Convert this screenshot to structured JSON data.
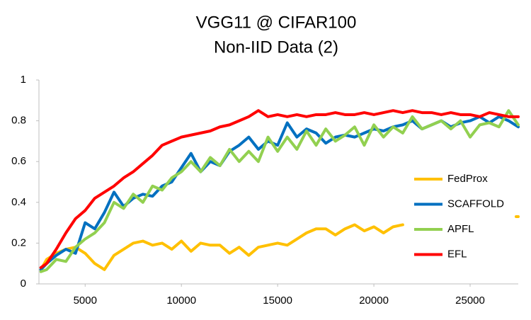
{
  "chart_data": {
    "type": "line",
    "title": "VGG11 @ CIFAR100",
    "subtitle": "Non-IID Data (2)",
    "x": [
      2700,
      3000,
      3500,
      4000,
      4500,
      5000,
      5500,
      6000,
      6500,
      7000,
      7500,
      8000,
      8500,
      9000,
      9500,
      10000,
      10500,
      11000,
      11500,
      12000,
      12500,
      13000,
      13500,
      14000,
      14500,
      15000,
      15500,
      16000,
      16500,
      17000,
      17500,
      18000,
      18500,
      19000,
      19500,
      20000,
      20500,
      21000,
      21500,
      22000,
      22500,
      23000,
      23500,
      24000,
      24500,
      25000,
      25500,
      26000,
      26500,
      27000,
      27500
    ],
    "series": [
      {
        "name": "FedProx",
        "color": "#FFC000",
        "values": [
          0.07,
          0.12,
          0.15,
          0.17,
          0.18,
          0.15,
          0.1,
          0.07,
          0.14,
          0.17,
          0.2,
          0.21,
          0.19,
          0.2,
          0.17,
          0.21,
          0.16,
          0.2,
          0.19,
          0.19,
          0.15,
          0.18,
          0.14,
          0.18,
          0.19,
          0.2,
          0.19,
          0.22,
          0.25,
          0.27,
          0.27,
          0.24,
          0.27,
          0.29,
          0.26,
          0.28,
          0.25,
          0.28,
          0.29,
          null,
          null,
          null,
          null,
          null,
          null,
          null,
          null,
          null,
          null,
          null,
          0.33
        ]
      },
      {
        "name": "SCAFFOLD",
        "color": "#0070C0",
        "values": [
          0.07,
          0.1,
          0.14,
          0.17,
          0.15,
          0.3,
          0.27,
          0.35,
          0.45,
          0.38,
          0.42,
          0.44,
          0.43,
          0.48,
          0.5,
          0.57,
          0.64,
          0.55,
          0.6,
          0.58,
          0.65,
          0.68,
          0.72,
          0.66,
          0.7,
          0.68,
          0.79,
          0.72,
          0.76,
          0.74,
          0.69,
          0.72,
          0.73,
          0.72,
          0.74,
          0.76,
          0.75,
          0.77,
          0.78,
          0.8,
          0.76,
          0.78,
          0.8,
          0.77,
          0.79,
          0.8,
          0.82,
          0.79,
          0.82,
          0.8,
          0.77
        ]
      },
      {
        "name": "APFL",
        "color": "#92D050",
        "values": [
          0.06,
          0.07,
          0.12,
          0.11,
          0.18,
          0.22,
          0.25,
          0.3,
          0.4,
          0.37,
          0.44,
          0.4,
          0.48,
          0.46,
          0.52,
          0.55,
          0.6,
          0.55,
          0.62,
          0.58,
          0.66,
          0.6,
          0.65,
          0.6,
          0.72,
          0.65,
          0.72,
          0.66,
          0.75,
          0.68,
          0.76,
          0.7,
          0.73,
          0.77,
          0.68,
          0.78,
          0.72,
          0.77,
          0.74,
          0.82,
          0.76,
          0.78,
          0.8,
          0.76,
          0.8,
          0.72,
          0.78,
          0.79,
          0.77,
          0.85,
          0.78
        ]
      },
      {
        "name": "EFL",
        "color": "#FF0000",
        "values": [
          0.08,
          0.1,
          0.17,
          0.25,
          0.32,
          0.36,
          0.42,
          0.45,
          0.48,
          0.52,
          0.55,
          0.59,
          0.63,
          0.68,
          0.7,
          0.72,
          0.73,
          0.74,
          0.75,
          0.77,
          0.78,
          0.8,
          0.82,
          0.85,
          0.82,
          0.83,
          0.82,
          0.83,
          0.82,
          0.83,
          0.83,
          0.84,
          0.83,
          0.83,
          0.84,
          0.83,
          0.84,
          0.85,
          0.84,
          0.85,
          0.84,
          0.84,
          0.83,
          0.84,
          0.83,
          0.83,
          0.82,
          0.84,
          0.83,
          0.82,
          0.82
        ]
      }
    ],
    "xlim": [
      2600,
      27500
    ],
    "xticks": [
      5000,
      10000,
      15000,
      20000,
      25000
    ],
    "ylim": [
      0,
      1
    ],
    "yticks": [
      0,
      0.2,
      0.4,
      0.6,
      0.8,
      1
    ],
    "legend": "right"
  }
}
